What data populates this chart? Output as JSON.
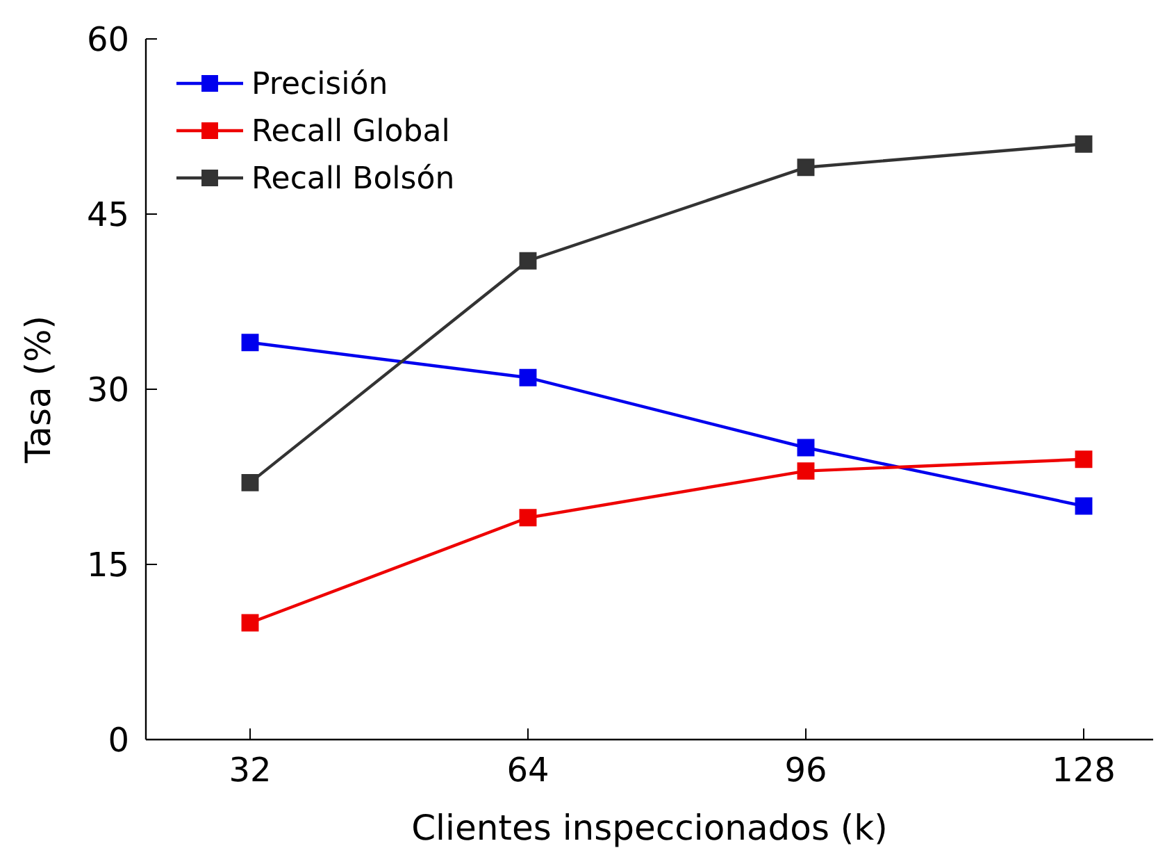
{
  "chart_data": {
    "type": "line",
    "xlabel": "Clientes inspeccionados (k)",
    "ylabel": "Tasa (%)",
    "x": [
      32,
      64,
      96,
      128
    ],
    "xlim": [
      20,
      136
    ],
    "xticks": [
      32,
      64,
      96,
      128
    ],
    "ylim": [
      0,
      60
    ],
    "yticks": [
      0,
      15,
      30,
      45,
      60
    ],
    "marker": "square",
    "legend": "top left",
    "series": [
      {
        "name": "Precisión",
        "color": "#0000ee",
        "values": [
          34,
          31,
          25,
          20
        ]
      },
      {
        "name": "Recall Global",
        "color": "#ee0000",
        "values": [
          10,
          19,
          23,
          24
        ]
      },
      {
        "name": "Recall Bolsón",
        "color": "#333333",
        "values": [
          22,
          41,
          49,
          51
        ]
      }
    ]
  }
}
